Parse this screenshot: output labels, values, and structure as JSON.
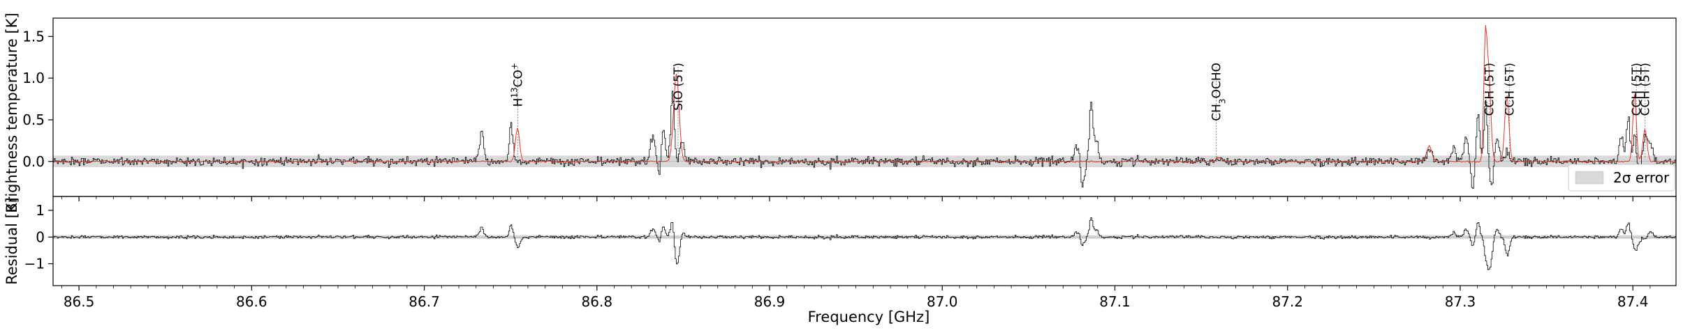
{
  "chart_data": {
    "type": "line",
    "xlabel": "Frequency [GHz]",
    "xlim": [
      86.485,
      87.425
    ],
    "x_ticks": [
      "86.5",
      "86.6",
      "86.7",
      "86.8",
      "86.9",
      "87.0",
      "87.1",
      "87.2",
      "87.3",
      "87.4"
    ],
    "x_tick_values": [
      86.5,
      86.6,
      86.7,
      86.8,
      86.9,
      87.0,
      87.1,
      87.2,
      87.3,
      87.4
    ],
    "panels": [
      {
        "id": "spectrum",
        "ylabel": "Brightness temperature [K]",
        "ylim": [
          -0.42,
          1.72
        ],
        "y_ticks": [
          "0.0",
          "0.5",
          "1.0",
          "1.5"
        ],
        "y_tick_values": [
          0.0,
          0.5,
          1.0,
          1.5
        ],
        "error_band": {
          "label": "2σ error",
          "lower": -0.07,
          "upper": 0.07,
          "color": "#d9d9d9"
        },
        "legend_position": "lower-right",
        "series": [
          {
            "kind": "observed",
            "color": "#000000",
            "style": "step",
            "noise": 0.025
          },
          {
            "kind": "model",
            "color": "#e8302a",
            "style": "line"
          }
        ],
        "features": [
          {
            "center": 86.733,
            "observed_peak": 0.38,
            "model_peak": 0.0,
            "width": 0.0012
          },
          {
            "center": 86.75,
            "observed_peak": 0.46,
            "model_peak": 0.0,
            "width": 0.001
          },
          {
            "center": 86.754,
            "observed_peak": 0.0,
            "model_peak": 0.4,
            "width": 0.0012
          },
          {
            "center": 86.832,
            "observed_peak": 0.3,
            "model_peak": 0.0,
            "width": 0.0015
          },
          {
            "center": 86.838,
            "observed_peak": 0.42,
            "model_peak": 0.0,
            "width": 0.0012
          },
          {
            "center": 86.836,
            "observed_peak": -0.28,
            "model_peak": 0.0,
            "width": 0.001
          },
          {
            "center": 86.8435,
            "observed_peak": 0.82,
            "model_peak": 0.0,
            "width": 0.001
          },
          {
            "center": 86.846,
            "observed_peak": 0.0,
            "model_peak": 1.05,
            "width": 0.0016
          },
          {
            "center": 86.849,
            "observed_peak": 0.22,
            "model_peak": 0.0,
            "width": 0.0012
          },
          {
            "center": 87.078,
            "observed_peak": 0.22,
            "model_peak": 0.0,
            "width": 0.0015
          },
          {
            "center": 87.081,
            "observed_peak": -0.32,
            "model_peak": 0.0,
            "width": 0.0012
          },
          {
            "center": 87.086,
            "observed_peak": 0.7,
            "model_peak": 0.0,
            "width": 0.001
          },
          {
            "center": 87.089,
            "observed_peak": 0.25,
            "model_peak": 0.0,
            "width": 0.0012
          },
          {
            "center": 87.16,
            "observed_peak": 0.05,
            "model_peak": 0.05,
            "width": 0.0015
          },
          {
            "center": 87.282,
            "observed_peak": 0.15,
            "model_peak": 0.18,
            "width": 0.0015
          },
          {
            "center": 87.296,
            "observed_peak": 0.18,
            "model_peak": 0.0,
            "width": 0.0012
          },
          {
            "center": 87.303,
            "observed_peak": 0.3,
            "model_peak": 0.0,
            "width": 0.0012
          },
          {
            "center": 87.307,
            "observed_peak": -0.35,
            "model_peak": 0.0,
            "width": 0.001
          },
          {
            "center": 87.31,
            "observed_peak": 0.55,
            "model_peak": 0.0,
            "width": 0.001
          },
          {
            "center": 87.3145,
            "observed_peak": 0.72,
            "model_peak": 1.32,
            "width": 0.0009
          },
          {
            "center": 87.3165,
            "observed_peak": 0.0,
            "model_peak": 1.05,
            "width": 0.0012
          },
          {
            "center": 87.318,
            "observed_peak": -0.3,
            "model_peak": 0.0,
            "width": 0.001
          },
          {
            "center": 87.321,
            "observed_peak": 0.3,
            "model_peak": 0.0,
            "width": 0.0012
          },
          {
            "center": 87.327,
            "observed_peak": 0.1,
            "model_peak": 0.8,
            "width": 0.0012
          },
          {
            "center": 87.393,
            "observed_peak": 0.3,
            "model_peak": 0.0,
            "width": 0.0012
          },
          {
            "center": 87.397,
            "observed_peak": 0.55,
            "model_peak": 0.0,
            "width": 0.001
          },
          {
            "center": 87.401,
            "observed_peak": 0.35,
            "model_peak": 0.82,
            "width": 0.001
          },
          {
            "center": 87.403,
            "observed_peak": -0.22,
            "model_peak": 0.0,
            "width": 0.001
          },
          {
            "center": 87.407,
            "observed_peak": 0.3,
            "model_peak": 0.38,
            "width": 0.0012
          },
          {
            "center": 87.41,
            "observed_peak": 0.2,
            "model_peak": 0.0,
            "width": 0.0012
          }
        ],
        "line_ids": [
          {
            "x": 86.7542,
            "label": "H13CO+",
            "main": "H",
            "sup": "13",
            "rest": "CO",
            "sup2": "+"
          },
          {
            "x": 86.847,
            "label": "SiO (5T)",
            "main": "SiO (5T)"
          },
          {
            "x": 87.1586,
            "label": "CH3OCHO",
            "main": "CH",
            "sub": "3",
            "rest": "OCHO"
          },
          {
            "x": 87.3169,
            "label": "CCH (5T)",
            "main": "CCH (5T)"
          },
          {
            "x": 87.3286,
            "label": "CCH (5T)",
            "main": "CCH (5T)"
          },
          {
            "x": 87.402,
            "label": "CCH (5T)",
            "main": "CCH (5T)"
          },
          {
            "x": 87.4071,
            "label": "CCH (5T)",
            "main": "CCH (5T)"
          }
        ]
      },
      {
        "id": "residual",
        "ylabel": "Residual [K]",
        "ylim": [
          -1.82,
          1.52
        ],
        "y_ticks": [
          "1",
          "0",
          "−1"
        ],
        "y_tick_values": [
          1,
          0,
          -1
        ],
        "error_band": {
          "lower": -0.07,
          "upper": 0.07,
          "color": "#d9d9d9"
        },
        "series": [
          {
            "kind": "residual",
            "color": "#000000",
            "style": "step",
            "noise": 0.03
          }
        ]
      }
    ],
    "legend": [
      {
        "label": "2σ error",
        "color": "#d9d9d9"
      }
    ]
  }
}
